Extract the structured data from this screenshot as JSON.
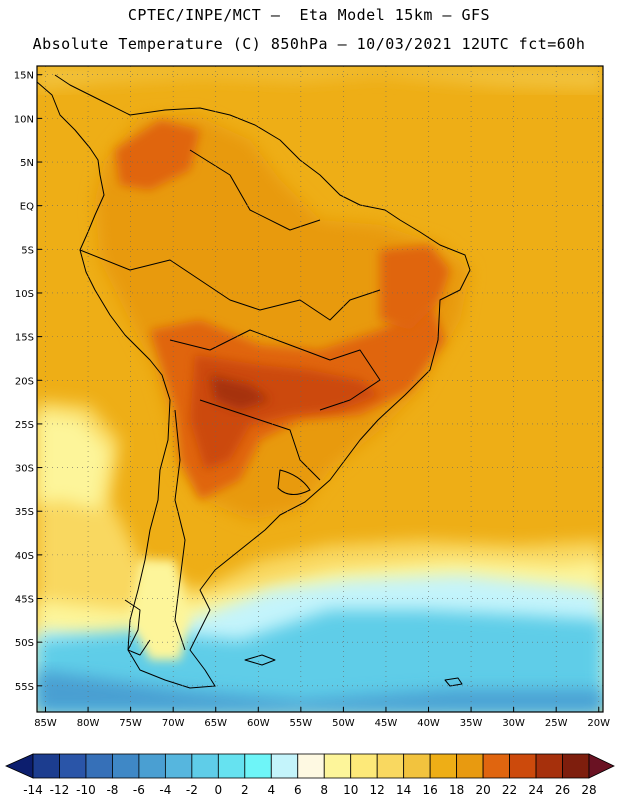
{
  "header": {
    "line1": "CPTEC/INPE/MCT –  Eta Model 15km – GFS",
    "line2": "Absolute Temperature (C) 850hPa – 10/03/2021 12UTC fct=60h"
  },
  "map": {
    "lat_labels": [
      "15N",
      "10N",
      "5N",
      "EQ",
      "5S",
      "10S",
      "15S",
      "20S",
      "25S",
      "30S",
      "35S",
      "40S",
      "45S",
      "50S",
      "55S"
    ],
    "lon_labels": [
      "85W",
      "80W",
      "75W",
      "70W",
      "65W",
      "60W",
      "55W",
      "50W",
      "45W",
      "40W",
      "35W",
      "30W",
      "25W",
      "20W"
    ],
    "extent": {
      "lon_min": -86,
      "lon_max": -19.5,
      "lat_min": -58,
      "lat_max": 16
    }
  },
  "colorbar": {
    "labels": [
      "-14",
      "-12",
      "-10",
      "-8",
      "-6",
      "-4",
      "-2",
      "0",
      "2",
      "4",
      "6",
      "8",
      "10",
      "12",
      "14",
      "16",
      "18",
      "20",
      "22",
      "24",
      "26",
      "28"
    ],
    "colors": [
      "#0c1e6e",
      "#1c3d8f",
      "#2a55a8",
      "#3670b8",
      "#3f88c6",
      "#4a9fd2",
      "#56b6de",
      "#5fcde8",
      "#66e2f0",
      "#6ef5f8",
      "#c4f4fb",
      "#fef9e2",
      "#fdf59a",
      "#fde979",
      "#f9d860",
      "#f2c33e",
      "#eeae16",
      "#e89a10",
      "#e0650f",
      "#cc4a0c",
      "#a6300c",
      "#7e1e0d",
      "#6a1223"
    ]
  }
}
